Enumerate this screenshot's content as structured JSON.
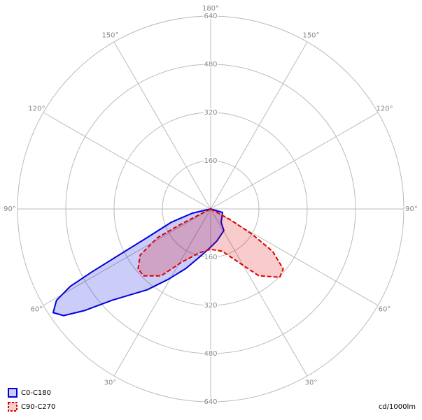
{
  "chart_data": {
    "type": "polar",
    "rlim": [
      0,
      640
    ],
    "rticks": [
      160,
      320,
      480,
      640
    ],
    "angle_ticks": [
      {
        "value": 30,
        "label": "30°"
      },
      {
        "value": 60,
        "label": "60°"
      },
      {
        "value": 90,
        "label": "90°"
      },
      {
        "value": 120,
        "label": "120°"
      },
      {
        "value": 150,
        "label": "150°"
      },
      {
        "value": 180,
        "label": "180°"
      }
    ],
    "unit": "cd/1000lm",
    "series": [
      {
        "name": "C0-C180",
        "color": "#0000dd",
        "dashed": false,
        "angles": [
          -90,
          -73.6,
          -38.3,
          -31.5,
          -11.1,
          1,
          13.1,
          22.7,
          31.1,
          38.1,
          47.1,
          51.1,
          54,
          56.6,
          59.3,
          61.1,
          62,
          63.3,
          65.7,
          71.3,
          77,
          90
        ],
        "values": [
          0,
          41,
          56,
          84,
          108,
          129,
          164,
          215,
          273,
          341,
          445,
          537,
          602,
          625,
          594,
          531,
          448,
          339,
          231,
          137,
          62,
          0
        ]
      },
      {
        "name": "C90-C270",
        "color": "#dd0000",
        "dashed": true,
        "angles": [
          -90,
          -61.1,
          -58.6,
          -55.6,
          -50.4,
          -45.3,
          -35.7,
          -27.2,
          -15.6,
          0,
          14.3,
          28.3,
          36.5,
          45,
          50.4,
          56.8,
          61.6,
          62.9,
          90
        ],
        "values": [
          0,
          77,
          160,
          249,
          312,
          322,
          273,
          197,
          146,
          134,
          150,
          200,
          276,
          314,
          312,
          279,
          200,
          106,
          0
        ]
      }
    ]
  }
}
